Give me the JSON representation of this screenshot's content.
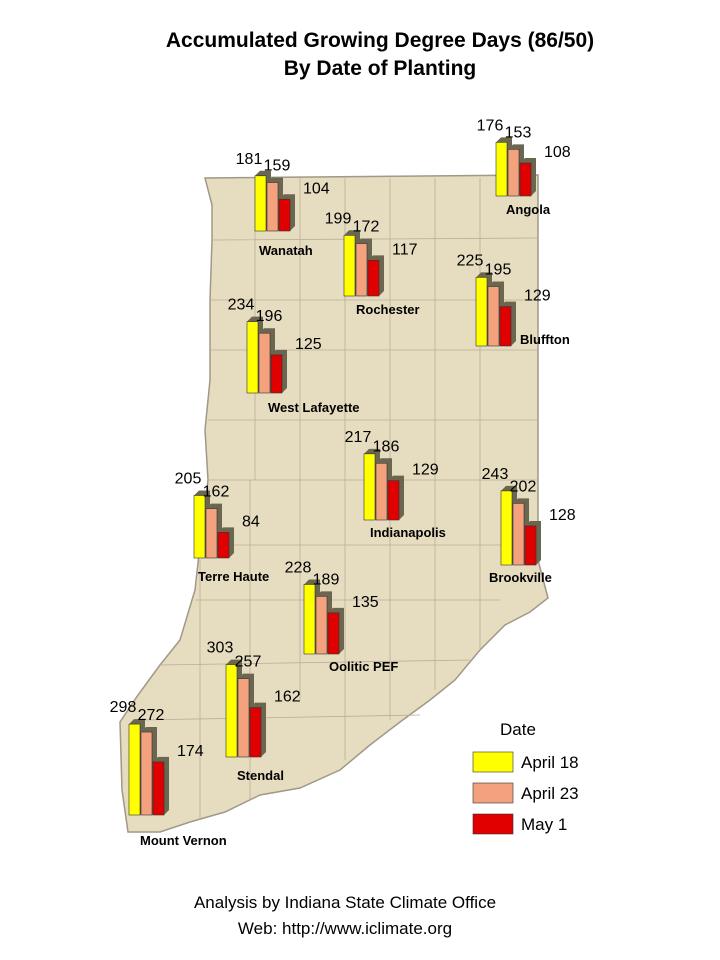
{
  "title": [
    "Accumulated Growing Degree Days (86/50)",
    "By Date of Planting"
  ],
  "legend": {
    "title": "Date",
    "series": [
      {
        "name": "April 18",
        "color": "#ffff00"
      },
      {
        "name": "April 23",
        "color": "#f4a27e"
      },
      {
        "name": "May 1",
        "color": "#e00000"
      }
    ]
  },
  "stations": [
    {
      "name": "Wanatah",
      "values": [
        181,
        159,
        104
      ]
    },
    {
      "name": "Angola",
      "values": [
        176,
        153,
        108
      ]
    },
    {
      "name": "Rochester",
      "values": [
        199,
        172,
        117
      ]
    },
    {
      "name": "Bluffton",
      "values": [
        225,
        195,
        129
      ]
    },
    {
      "name": "West Lafayette",
      "values": [
        234,
        196,
        125
      ]
    },
    {
      "name": "Indianapolis",
      "values": [
        217,
        186,
        129
      ]
    },
    {
      "name": "Terre Haute",
      "values": [
        205,
        162,
        84
      ]
    },
    {
      "name": "Brookville",
      "values": [
        243,
        202,
        128
      ]
    },
    {
      "name": "Oolitic PEF",
      "values": [
        228,
        189,
        135
      ]
    },
    {
      "name": "Stendal",
      "values": [
        303,
        257,
        162
      ]
    },
    {
      "name": "Mount Vernon",
      "values": [
        298,
        272,
        174
      ]
    }
  ],
  "footer": [
    "Analysis by Indiana State Climate Office",
    "Web: http://www.iclimate.org"
  ]
}
